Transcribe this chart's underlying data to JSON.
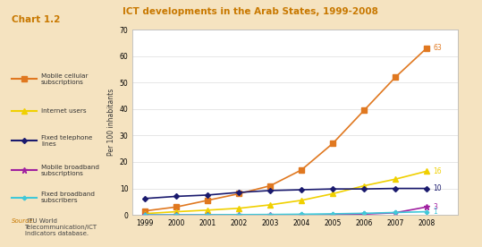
{
  "title": "ICT developments in the Arab States, 1999-2008",
  "chart_label": "Chart 1.2",
  "ylabel": "Per 100 inhabitants",
  "background_color": "#f5e3c0",
  "plot_bg_color": "#ffffff",
  "plot_border_color": "#cccccc",
  "years": [
    1999,
    2000,
    2001,
    2002,
    2003,
    2004,
    2005,
    2006,
    2007,
    2008
  ],
  "series": [
    {
      "name": "Mobile cellular\nsubscriptions",
      "color": "#e07820",
      "marker": "s",
      "markersize": 4,
      "data": [
        1.5,
        3.0,
        5.5,
        8.0,
        11.0,
        17.0,
        27.0,
        39.5,
        52.0,
        63.0
      ]
    },
    {
      "name": "Internet users",
      "color": "#f0d000",
      "marker": "^",
      "markersize": 4,
      "data": [
        0.5,
        1.2,
        1.8,
        2.5,
        3.8,
        5.5,
        8.0,
        11.0,
        13.5,
        16.5
      ]
    },
    {
      "name": "Fixed telephone\nlines",
      "color": "#1a1a6e",
      "marker": "D",
      "markersize": 3,
      "data": [
        6.2,
        7.0,
        7.5,
        8.5,
        9.2,
        9.5,
        9.8,
        9.8,
        10.0,
        10.0
      ]
    },
    {
      "name": "Mobile broadband\nsubscriptions",
      "color": "#a020a0",
      "marker": "*",
      "markersize": 5,
      "data": [
        0.0,
        0.0,
        0.0,
        0.0,
        0.0,
        0.0,
        0.1,
        0.3,
        0.8,
        3.0
      ]
    },
    {
      "name": "Fixed broadband\nsubscribers",
      "color": "#40c8d8",
      "marker": "P",
      "markersize": 3,
      "data": [
        0.0,
        0.0,
        0.05,
        0.1,
        0.15,
        0.25,
        0.4,
        0.6,
        0.9,
        1.2
      ]
    }
  ],
  "end_labels": [
    "63",
    "16",
    "10",
    "3",
    "1"
  ],
  "ylim": [
    0,
    70
  ],
  "yticks": [
    0,
    10,
    20,
    30,
    40,
    50,
    60,
    70
  ],
  "source_italic": "Source:",
  "source_rest": " ITU World\nTelecommunication/ICT\nIndicators database.",
  "title_color": "#c87800",
  "chart_label_color": "#c87800"
}
